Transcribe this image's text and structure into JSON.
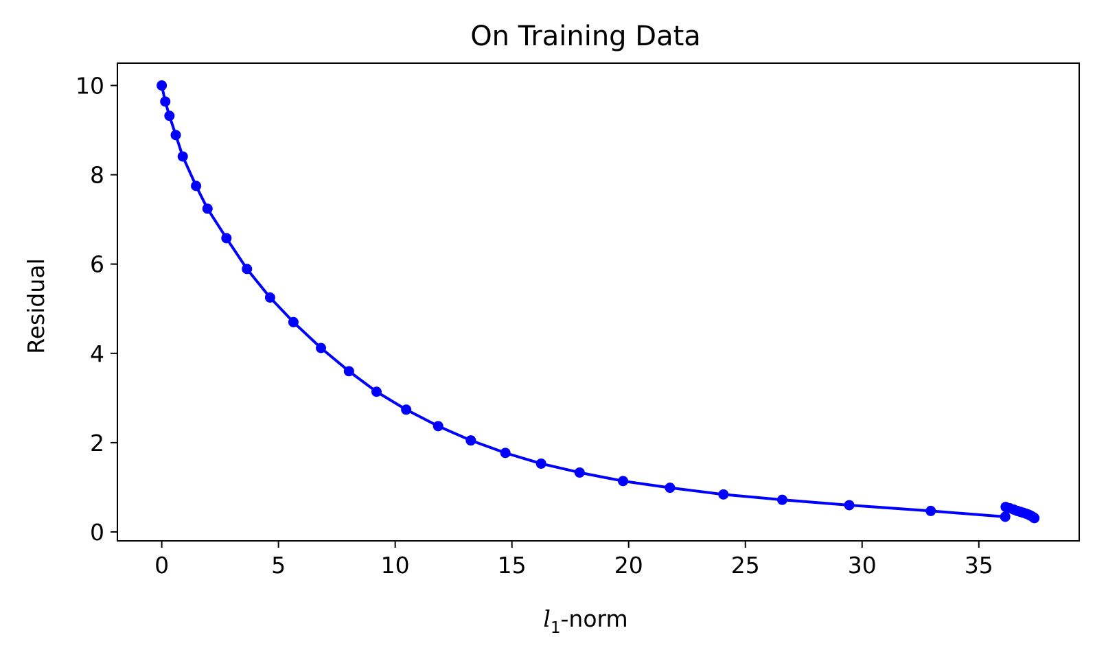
{
  "chart_data": {
    "type": "line",
    "title": "On Training Data",
    "xlabel": {
      "variable": "l",
      "subscript": "1",
      "suffix": "-norm"
    },
    "ylabel": "Residual",
    "xlim": [
      -1.9,
      39.3
    ],
    "ylim": [
      -0.2,
      10.5
    ],
    "xticks": [
      0,
      5,
      10,
      15,
      20,
      25,
      30,
      35
    ],
    "yticks": [
      0,
      2,
      4,
      6,
      8,
      10
    ],
    "xtick_labels": [
      "0",
      "5",
      "10",
      "15",
      "20",
      "25",
      "30",
      "35"
    ],
    "ytick_labels": [
      "0",
      "2",
      "4",
      "6",
      "8",
      "10"
    ],
    "grid": false,
    "series": [
      {
        "color": "#0000ff",
        "marker": "circle",
        "x": [
          0,
          0.15,
          0.33,
          0.6,
          0.9,
          1.47,
          1.96,
          2.77,
          3.65,
          4.64,
          5.64,
          6.82,
          8.02,
          9.2,
          10.47,
          11.84,
          13.24,
          14.72,
          16.25,
          17.9,
          19.76,
          21.77,
          24.06,
          26.58,
          29.45,
          32.94,
          36.13,
          36.15,
          36.33,
          36.5,
          36.65,
          36.78,
          36.9,
          37.02,
          37.12,
          37.2,
          37.27,
          37.33,
          37.36,
          37.38
        ],
        "y": [
          10.0,
          9.64,
          9.32,
          8.89,
          8.41,
          7.75,
          7.24,
          6.58,
          5.89,
          5.25,
          4.7,
          4.12,
          3.6,
          3.14,
          2.74,
          2.37,
          2.05,
          1.77,
          1.53,
          1.33,
          1.14,
          0.99,
          0.84,
          0.72,
          0.6,
          0.47,
          0.34,
          0.56,
          0.53,
          0.5,
          0.47,
          0.45,
          0.43,
          0.41,
          0.39,
          0.37,
          0.35,
          0.33,
          0.32,
          0.31
        ]
      }
    ]
  }
}
